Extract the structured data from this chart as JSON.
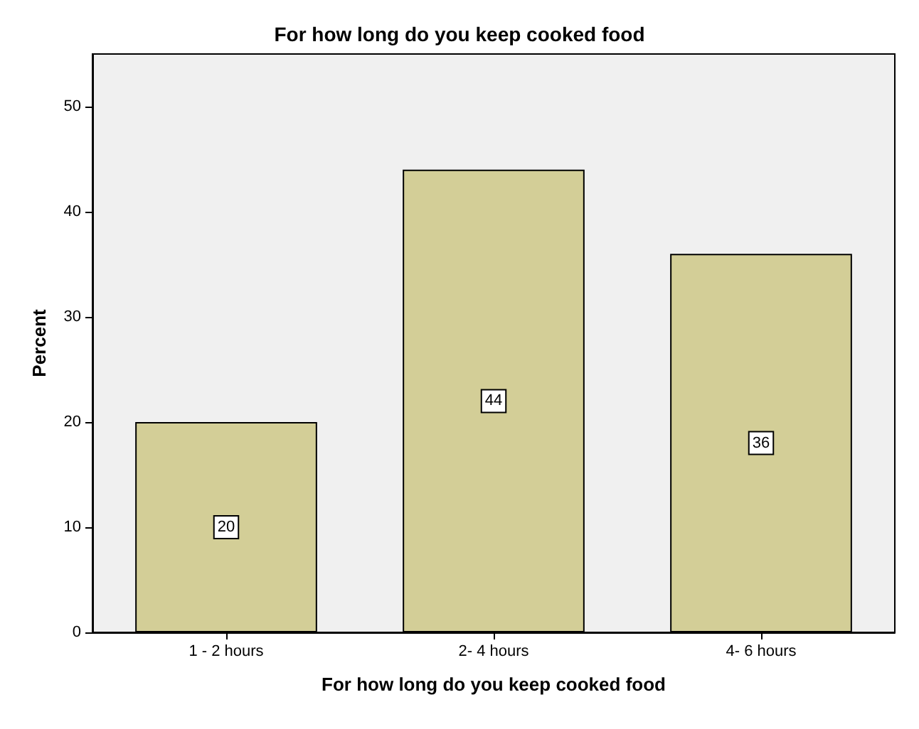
{
  "chart_data": {
    "type": "bar",
    "title": "For how long do you keep cooked food",
    "xlabel": "For how long do you keep cooked food",
    "ylabel": "Percent",
    "categories": [
      "1 - 2 hours",
      "2- 4 hours",
      "4- 6 hours"
    ],
    "values": [
      20,
      44,
      36
    ],
    "color": "#d3ce97",
    "ylim": [
      0,
      55
    ],
    "yticks": [
      0,
      10,
      20,
      30,
      40,
      50
    ],
    "grid": false,
    "data_labels": true
  }
}
